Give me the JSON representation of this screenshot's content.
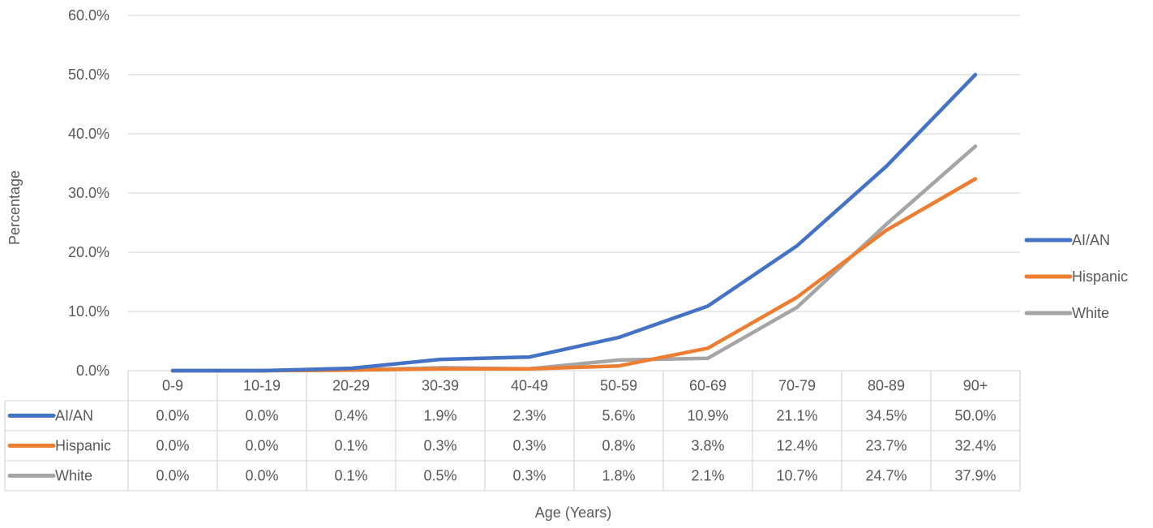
{
  "chart_data": {
    "type": "line",
    "title": "",
    "xlabel": "Age (Years)",
    "ylabel": "Percentage",
    "ylim": [
      0,
      60
    ],
    "y_ticks": [
      "0.0%",
      "10.0%",
      "20.0%",
      "30.0%",
      "40.0%",
      "50.0%",
      "60.0%"
    ],
    "grid": true,
    "legend_position": "right",
    "data_table": true,
    "categories": [
      "0-9",
      "10-19",
      "20-29",
      "30-39",
      "40-49",
      "50-59",
      "60-69",
      "70-79",
      "80-89",
      "90+"
    ],
    "series": [
      {
        "name": "AI/AN",
        "color": "#4472C4",
        "values": [
          0.0,
          0.0,
          0.4,
          1.9,
          2.3,
          5.6,
          10.9,
          21.1,
          34.5,
          50.0
        ],
        "labels": [
          "0.0%",
          "0.0%",
          "0.4%",
          "1.9%",
          "2.3%",
          "5.6%",
          "10.9%",
          "21.1%",
          "34.5%",
          "50.0%"
        ]
      },
      {
        "name": "Hispanic",
        "color": "#ED7D31",
        "values": [
          0.0,
          0.0,
          0.1,
          0.3,
          0.3,
          0.8,
          3.8,
          12.4,
          23.7,
          32.4
        ],
        "labels": [
          "0.0%",
          "0.0%",
          "0.1%",
          "0.3%",
          "0.3%",
          "0.8%",
          "3.8%",
          "12.4%",
          "23.7%",
          "32.4%"
        ]
      },
      {
        "name": "White",
        "color": "#A5A5A5",
        "values": [
          0.0,
          0.0,
          0.1,
          0.5,
          0.3,
          1.8,
          2.1,
          10.7,
          24.7,
          37.9
        ],
        "labels": [
          "0.0%",
          "0.0%",
          "0.1%",
          "0.5%",
          "0.3%",
          "1.8%",
          "2.1%",
          "10.7%",
          "24.7%",
          "37.9%"
        ]
      }
    ]
  }
}
